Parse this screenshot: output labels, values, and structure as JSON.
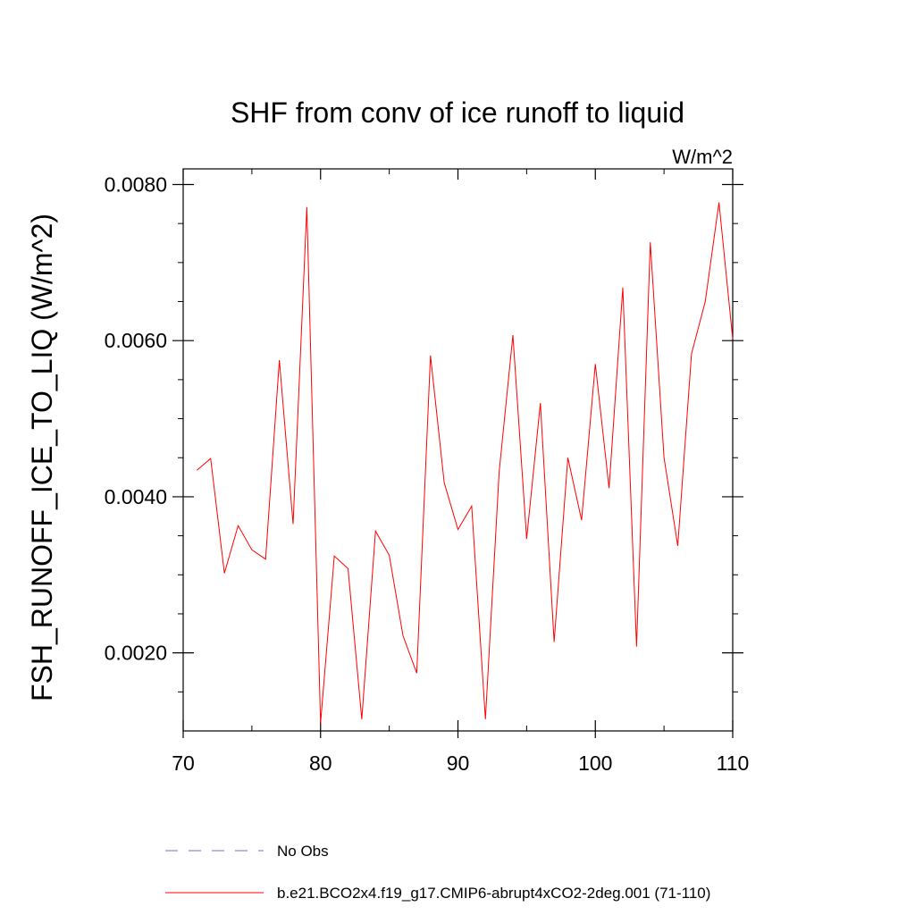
{
  "chart_data": {
    "type": "line",
    "title": "SHF from conv of ice runoff to liquid",
    "units_label": "W/m^2",
    "xlabel": "",
    "ylabel": "FSH_RUNOFF_ICE_TO_LIQ  (W/m^2)",
    "xlim": [
      70,
      110
    ],
    "ylim": [
      0.001,
      0.0082
    ],
    "x_ticks": [
      70,
      80,
      90,
      100,
      110
    ],
    "x_tick_labels": [
      "70",
      "80",
      "90",
      "100",
      "110"
    ],
    "y_ticks": [
      0.002,
      0.004,
      0.006,
      0.008
    ],
    "y_tick_labels": [
      "0.0020",
      "0.0040",
      "0.0060",
      "0.0080"
    ],
    "y_minor_step": 0.0005,
    "x_minor_step": 5,
    "grid": false,
    "legend_position": "bottom",
    "legend": [
      {
        "name": "No Obs",
        "style": "dashed",
        "color": "#7b68c8"
      },
      {
        "name": "b.e21.BCO2x4.f19_g17.CMIP6-abrupt4xCO2-2deg.001 (71-110)",
        "style": "solid",
        "color": "#ff0000"
      }
    ],
    "series": [
      {
        "name": "b.e21.BCO2x4.f19_g17.CMIP6-abrupt4xCO2-2deg.001 (71-110)",
        "color": "#ff0000",
        "x": [
          71,
          72,
          73,
          74,
          75,
          76,
          77,
          78,
          79,
          80,
          81,
          82,
          83,
          84,
          85,
          86,
          87,
          88,
          89,
          90,
          91,
          92,
          93,
          94,
          95,
          96,
          97,
          98,
          99,
          100,
          101,
          102,
          103,
          104,
          105,
          106,
          107,
          108,
          109,
          110
        ],
        "values": [
          0.00434,
          0.00449,
          0.00302,
          0.00363,
          0.00332,
          0.0032,
          0.00575,
          0.00365,
          0.00771,
          0.0011,
          0.00324,
          0.00308,
          0.00115,
          0.00356,
          0.00325,
          0.00222,
          0.00174,
          0.00581,
          0.00418,
          0.00358,
          0.00388,
          0.00115,
          0.00432,
          0.00607,
          0.00346,
          0.0052,
          0.00214,
          0.0045,
          0.0037,
          0.0057,
          0.00411,
          0.00668,
          0.00208,
          0.00726,
          0.0045,
          0.00337,
          0.00583,
          0.0065,
          0.00777,
          0.00602
        ]
      }
    ]
  }
}
